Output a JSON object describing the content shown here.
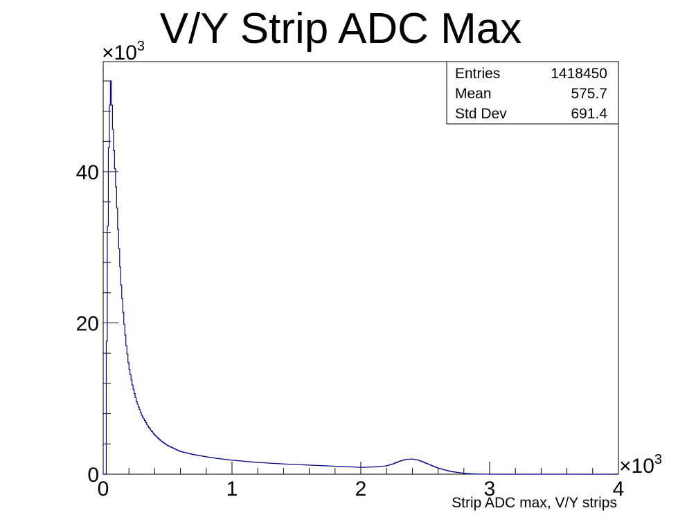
{
  "chart_data": {
    "type": "histogram",
    "title": "V/Y Strip ADC Max",
    "xlabel": "Strip ADC max, V/Y strips",
    "ylabel": "",
    "xlim": [
      0,
      4000
    ],
    "ylim": [
      0,
      54560
    ],
    "x_multiplier": {
      "base": "×10",
      "exponent": "3"
    },
    "y_multiplier": {
      "base": "×10",
      "exponent": "3"
    },
    "x_tick_labels": [
      {
        "value": 0,
        "label": "0"
      },
      {
        "value": 1000,
        "label": "1"
      },
      {
        "value": 2000,
        "label": "2"
      },
      {
        "value": 3000,
        "label": "3"
      },
      {
        "value": 4000,
        "label": "4"
      }
    ],
    "y_tick_labels": [
      {
        "value": 0,
        "label": "0"
      },
      {
        "value": 20000,
        "label": "20"
      },
      {
        "value": 40000,
        "label": "40"
      }
    ],
    "grid": false,
    "line_color": "#00008b",
    "series": [
      {
        "x": [
          0,
          20,
          30,
          40,
          50,
          60,
          70,
          80,
          100,
          120,
          140,
          160,
          180,
          200,
          230,
          260,
          300,
          350,
          400,
          450,
          500,
          600,
          700,
          800,
          900,
          1000,
          1200,
          1400,
          1600,
          1800,
          2000,
          2100,
          2200,
          2250,
          2300,
          2350,
          2400,
          2450,
          2500,
          2550,
          2600,
          2700,
          2800,
          2850,
          2900,
          3000,
          3500,
          4000
        ],
        "y": [
          0,
          0,
          22000,
          40000,
          48000,
          52000,
          48000,
          44000,
          38000,
          31000,
          25000,
          20500,
          17000,
          14200,
          11600,
          9600,
          7800,
          6300,
          5200,
          4400,
          3800,
          3000,
          2600,
          2300,
          2050,
          1850,
          1550,
          1350,
          1200,
          1050,
          900,
          950,
          1100,
          1350,
          1700,
          1950,
          2000,
          1850,
          1500,
          1150,
          800,
          350,
          120,
          60,
          20,
          0,
          0,
          0
        ]
      }
    ],
    "stats_box": {
      "legend_position": "top-right",
      "rows": [
        {
          "name": "Entries",
          "value": "1418450"
        },
        {
          "name": "Mean",
          "value": "575.7"
        },
        {
          "name": "Std Dev",
          "value": "691.4"
        }
      ]
    }
  }
}
